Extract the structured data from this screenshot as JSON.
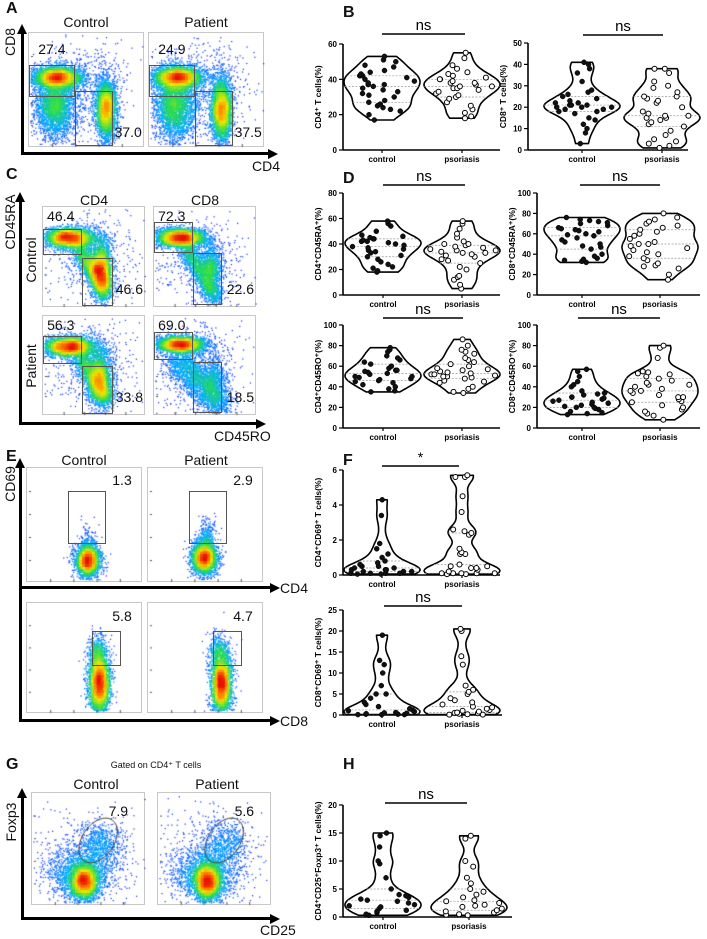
{
  "panel_letters": {
    "A": "A",
    "B": "B",
    "C": "C",
    "D": "D",
    "E": "E",
    "F": "F",
    "G": "G",
    "H": "H"
  },
  "flow": {
    "A": {
      "y_axis": "CD8",
      "x_axis": "CD4",
      "headers": [
        "Control",
        "Patient"
      ],
      "plots": [
        {
          "gates": [
            "27.4",
            "37.0"
          ]
        },
        {
          "gates": [
            "24.9",
            "37.5"
          ]
        }
      ]
    },
    "C": {
      "y_axis": "CD45RA",
      "x_axis": "CD45RO",
      "col_headers": [
        "CD4",
        "CD8"
      ],
      "row_headers": [
        "Control",
        "Patient"
      ],
      "plots": [
        {
          "gates": [
            "46.4",
            "46.6"
          ]
        },
        {
          "gates": [
            "72.3",
            "22.6"
          ]
        },
        {
          "gates": [
            "56.3",
            "33.8"
          ]
        },
        {
          "gates": [
            "69.0",
            "18.5"
          ]
        }
      ]
    },
    "E": {
      "y_axis": "CD69",
      "x_axes": [
        "CD4",
        "CD8"
      ],
      "headers": [
        "Control",
        "Patient"
      ],
      "plots": [
        {
          "gates": [
            "1.3"
          ]
        },
        {
          "gates": [
            "2.9"
          ]
        },
        {
          "gates": [
            "5.8"
          ]
        },
        {
          "gates": [
            "4.7"
          ]
        }
      ]
    },
    "G": {
      "note": "Gated on CD4⁺ T cells",
      "y_axis": "Foxp3",
      "x_axis": "CD25",
      "headers": [
        "Control",
        "Patient"
      ],
      "plots": [
        {
          "gates": [
            "7.9"
          ]
        },
        {
          "gates": [
            "5.6"
          ]
        }
      ]
    }
  },
  "colors": {
    "control_dot": "#111111",
    "psoriasis_dot": "#ffffff",
    "outline": "#000000"
  },
  "chart_data": [
    {
      "id": "B1",
      "type": "violin",
      "ylabel": "CD4⁺ T cells(%)",
      "ylim": [
        0,
        60
      ],
      "yticks": [
        0,
        20,
        40,
        60
      ],
      "categories": [
        "control",
        "psoriasis"
      ],
      "significance": "ns",
      "series": [
        {
          "name": "control",
          "values": [
            53,
            51,
            50,
            48,
            47,
            45,
            44,
            43,
            42,
            42,
            41,
            40,
            39,
            38,
            37,
            37,
            36,
            35,
            34,
            33,
            32,
            31,
            30,
            28,
            27,
            26,
            25,
            24,
            23,
            22,
            20,
            17
          ]
        },
        {
          "name": "psoriasis",
          "values": [
            55,
            52,
            48,
            46,
            44,
            43,
            42,
            41,
            40,
            40,
            39,
            38,
            38,
            37,
            36,
            36,
            35,
            35,
            34,
            33,
            32,
            31,
            30,
            29,
            27,
            25,
            23,
            21,
            19,
            18
          ]
        }
      ]
    },
    {
      "id": "B2",
      "type": "violin",
      "ylabel": "CD8⁺ T cells(%)",
      "ylim": [
        0,
        50
      ],
      "yticks": [
        0,
        10,
        20,
        30,
        40,
        50
      ],
      "categories": [
        "control",
        "psoriasis"
      ],
      "significance": "ns",
      "series": [
        {
          "name": "control",
          "values": [
            41,
            40,
            38,
            36,
            32,
            28,
            27,
            26,
            25,
            24,
            23,
            22,
            22,
            21,
            21,
            21,
            20,
            20,
            20,
            19,
            19,
            18,
            18,
            17,
            15,
            14,
            12,
            10,
            8,
            3
          ]
        },
        {
          "name": "psoriasis",
          "values": [
            38,
            38,
            36,
            32,
            30,
            29,
            27,
            25,
            25,
            24,
            23,
            22,
            20,
            18,
            17,
            16,
            16,
            15,
            15,
            14,
            13,
            12,
            11,
            9,
            7,
            5,
            4,
            3,
            2,
            1
          ]
        }
      ]
    },
    {
      "id": "D1",
      "type": "violin",
      "ylabel": "CD4⁺CD45RA⁺(%)",
      "ylim": [
        0,
        80
      ],
      "yticks": [
        0,
        20,
        40,
        60,
        80
      ],
      "categories": [
        "control",
        "psoriasis"
      ],
      "significance": "ns",
      "series": [
        {
          "name": "control",
          "values": [
            58,
            56,
            54,
            50,
            47,
            46,
            45,
            44,
            44,
            43,
            42,
            42,
            41,
            40,
            39,
            38,
            37,
            36,
            35,
            34,
            33,
            31,
            30,
            28,
            26,
            24,
            22,
            21,
            19,
            18
          ]
        },
        {
          "name": "psoriasis",
          "values": [
            58,
            56,
            52,
            48,
            45,
            42,
            40,
            40,
            39,
            38,
            37,
            36,
            35,
            35,
            34,
            33,
            33,
            32,
            31,
            30,
            28,
            27,
            25,
            22,
            20,
            15,
            14,
            12,
            8,
            5
          ]
        }
      ]
    },
    {
      "id": "D2",
      "type": "violin",
      "ylabel": "CD8⁺CD45RA⁺(%)",
      "ylim": [
        0,
        100
      ],
      "yticks": [
        0,
        20,
        40,
        60,
        80,
        100
      ],
      "categories": [
        "control",
        "psoriasis"
      ],
      "significance": "ns",
      "series": [
        {
          "name": "control",
          "values": [
            76,
            74,
            73,
            72,
            71,
            70,
            68,
            66,
            65,
            64,
            63,
            62,
            60,
            59,
            58,
            56,
            54,
            52,
            50,
            48,
            47,
            45,
            40,
            38,
            36,
            35,
            34,
            33,
            32
          ]
        },
        {
          "name": "psoriasis",
          "values": [
            80,
            76,
            74,
            72,
            70,
            68,
            66,
            64,
            62,
            60,
            58,
            55,
            52,
            50,
            50,
            48,
            46,
            44,
            42,
            40,
            38,
            36,
            34,
            31,
            29,
            28,
            26,
            20,
            15
          ]
        }
      ]
    },
    {
      "id": "D3",
      "type": "violin",
      "ylabel": "CD4⁺CD45RO⁺(%)",
      "ylim": [
        0,
        100
      ],
      "yticks": [
        0,
        20,
        40,
        60,
        80,
        100
      ],
      "categories": [
        "control",
        "psoriasis"
      ],
      "significance": "ns",
      "series": [
        {
          "name": "control",
          "values": [
            78,
            76,
            74,
            70,
            68,
            66,
            64,
            62,
            60,
            58,
            56,
            56,
            55,
            54,
            53,
            52,
            50,
            50,
            49,
            48,
            47,
            46,
            45,
            44,
            42,
            40,
            38,
            36,
            35
          ]
        },
        {
          "name": "psoriasis",
          "values": [
            86,
            80,
            76,
            74,
            72,
            68,
            66,
            64,
            62,
            60,
            58,
            57,
            56,
            55,
            54,
            53,
            52,
            52,
            51,
            50,
            50,
            49,
            48,
            46,
            45,
            44,
            40,
            38,
            35,
            34
          ]
        }
      ]
    },
    {
      "id": "D4",
      "type": "violin",
      "ylabel": "CD8⁺CD45RO⁺(%)",
      "ylim": [
        0,
        100
      ],
      "yticks": [
        0,
        20,
        40,
        60,
        80,
        100
      ],
      "categories": [
        "control",
        "psoriasis"
      ],
      "significance": "ns",
      "series": [
        {
          "name": "control",
          "values": [
            57,
            55,
            50,
            45,
            42,
            40,
            36,
            34,
            33,
            32,
            30,
            30,
            29,
            28,
            27,
            26,
            25,
            24,
            23,
            22,
            21,
            20,
            20,
            19,
            18,
            16,
            15,
            14,
            13
          ]
        },
        {
          "name": "psoriasis",
          "values": [
            80,
            78,
            68,
            55,
            54,
            53,
            52,
            50,
            48,
            46,
            44,
            42,
            42,
            40,
            38,
            36,
            36,
            34,
            32,
            30,
            30,
            28,
            26,
            25,
            22,
            20,
            18,
            16,
            14,
            12,
            8
          ]
        }
      ]
    },
    {
      "id": "F1",
      "type": "violin",
      "ylabel": "CD4⁺CD69⁺ T cells(%)",
      "ylim": [
        0,
        6
      ],
      "yticks": [
        0,
        2,
        4,
        6
      ],
      "categories": [
        "control",
        "psoriasis"
      ],
      "significance": "*",
      "series": [
        {
          "name": "control",
          "values": [
            4.3,
            3.4,
            1.8,
            1.5,
            1.2,
            1.0,
            0.8,
            0.7,
            0.6,
            0.5,
            0.5,
            0.4,
            0.4,
            0.3,
            0.3,
            0.3,
            0.2,
            0.2,
            0.2,
            0.1,
            0.1,
            0.1,
            0.1,
            0.05,
            0.05
          ]
        },
        {
          "name": "psoriasis",
          "values": [
            5.7,
            5.6,
            5.6,
            4.5,
            3.6,
            2.6,
            2.5,
            2.4,
            2.3,
            1.5,
            1.3,
            1.2,
            1.2,
            0.6,
            0.5,
            0.5,
            0.4,
            0.4,
            0.3,
            0.2,
            0.1,
            0.1,
            0.1,
            0.1,
            0.1,
            0.05,
            0.05
          ]
        }
      ]
    },
    {
      "id": "F2",
      "type": "violin",
      "ylabel": "CD8⁺CD69⁺ T cells(%)",
      "ylim": [
        0,
        25
      ],
      "yticks": [
        0,
        5,
        10,
        15,
        20,
        25
      ],
      "categories": [
        "control",
        "psoriasis"
      ],
      "significance": "ns",
      "series": [
        {
          "name": "control",
          "values": [
            19,
            13,
            12,
            10,
            7,
            5,
            5,
            4,
            3,
            2.5,
            2,
            1.5,
            1.2,
            1,
            0.8,
            0.6,
            0.5,
            0.4,
            0.3,
            0.2,
            0.2,
            0.1,
            0.1,
            0.1
          ]
        },
        {
          "name": "psoriasis",
          "values": [
            20.5,
            20,
            14,
            12,
            7,
            6,
            5.5,
            5,
            4,
            3.5,
            3,
            2.5,
            2,
            1.8,
            1.5,
            1.2,
            1,
            0.8,
            0.6,
            0.5,
            0.4,
            0.3,
            0.2,
            0.1,
            0.1
          ]
        }
      ]
    },
    {
      "id": "H",
      "type": "violin",
      "ylabel": "CD4⁺CD25⁺Foxp3⁺ T cells(%)",
      "ylim": [
        0,
        20
      ],
      "yticks": [
        0,
        5,
        10,
        15,
        20
      ],
      "categories": [
        "control",
        "psoriasis"
      ],
      "significance": "ns",
      "series": [
        {
          "name": "control",
          "values": [
            15,
            14.5,
            12.5,
            10,
            9.5,
            7,
            5,
            4,
            3.8,
            3.5,
            3.2,
            3,
            2.8,
            2.5,
            2.2,
            2,
            1.8,
            1.5,
            1.2,
            1,
            0.8,
            0.5,
            0.3
          ]
        },
        {
          "name": "psoriasis",
          "values": [
            14.5,
            14,
            10,
            9,
            7,
            6,
            5,
            4.5,
            4,
            3.5,
            3,
            2.8,
            2.5,
            2.2,
            2,
            1.8,
            1.5,
            1.2,
            1,
            0.8,
            0.5,
            0.4,
            0.3
          ]
        }
      ]
    }
  ]
}
